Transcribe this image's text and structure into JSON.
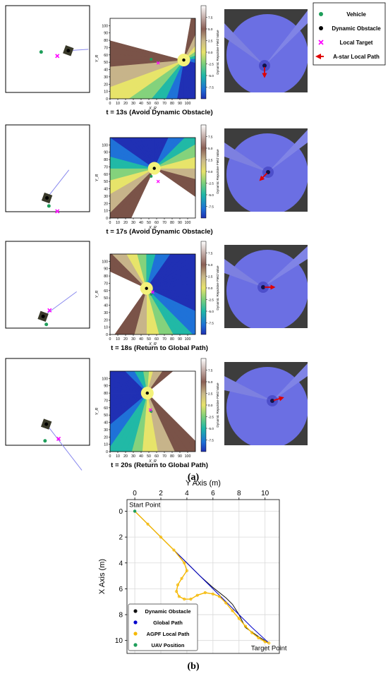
{
  "legend": {
    "items": [
      {
        "label": "Vehicle",
        "marker": "circle",
        "color": "#1e9e5a"
      },
      {
        "label": "Dynamic Obstacle",
        "marker": "circle",
        "color": "#000000"
      },
      {
        "label": "Local Target",
        "marker": "x",
        "color": "#ff00ff"
      },
      {
        "label": "A-star Local Path",
        "marker": "arrow",
        "color": "#e00000"
      }
    ]
  },
  "panels": [
    {
      "caption": "t = 13s (Avoid Dynamic Obstacle)",
      "grid": {
        "vehicle": [
          55,
          6
        ],
        "obstacle": [
          97,
          4
        ],
        "target": [
          80,
          12
        ],
        "trail_end": [
          128,
          2
        ]
      },
      "field": {
        "obstacle": [
          95,
          53
        ],
        "vehicle": [
          53,
          54
        ],
        "target": [
          62,
          49
        ],
        "pattern": "p13"
      },
      "view": {
        "obstacle": [
          57,
          80
        ],
        "arrow_dir": [
          0,
          1
        ]
      }
    },
    {
      "caption": "t = 17s (Avoid Dynamic Obstacle)",
      "grid": {
        "vehicle": [
          67,
          58
        ],
        "obstacle": [
          64,
          46
        ],
        "target": [
          80,
          66
        ],
        "trail_end": [
          98,
          4
        ]
      },
      "field": {
        "obstacle": [
          57,
          68
        ],
        "vehicle": [
          53,
          57
        ],
        "target": [
          62,
          50
        ],
        "pattern": "p17"
      },
      "view": {
        "obstacle": [
          62,
          62
        ],
        "arrow_dir": [
          -1,
          1
        ]
      }
    },
    {
      "caption": "t = 18s (Return to Global Path)",
      "grid": {
        "vehicle": [
          63,
          61
        ],
        "obstacle": [
          58,
          49
        ],
        "target": [
          68,
          40
        ],
        "trail_end": [
          110,
          12
        ]
      },
      "field": {
        "obstacle": [
          47,
          63
        ],
        "vehicle": [
          53,
          55
        ],
        "target": [
          55,
          58
        ],
        "pattern": "p18"
      },
      "view": {
        "obstacle": [
          55,
          60
        ],
        "arrow_dir": [
          1,
          0
        ]
      }
    },
    {
      "caption": "t = 20s (Return to Global Path)",
      "grid": {
        "vehicle": [
          61,
          60
        ],
        "obstacle": [
          63,
          35
        ],
        "target": [
          82,
          57
        ],
        "trail_end": [
          118,
          104
        ]
      },
      "field": {
        "obstacle": [
          48,
          80
        ],
        "vehicle": [
          53,
          55
        ],
        "target": [
          52,
          57
        ],
        "pattern": "p20"
      },
      "view": {
        "obstacle": [
          68,
          55
        ],
        "arrow_dir": [
          1,
          -0.3
        ]
      }
    }
  ],
  "field_axes": {
    "xlabel": "X_R",
    "ylabel": "Y_R",
    "xticks": [
      0,
      10,
      20,
      30,
      40,
      50,
      60,
      70,
      80,
      90,
      100
    ],
    "yticks": [
      0,
      10,
      20,
      30,
      40,
      50,
      60,
      70,
      80,
      90,
      100
    ],
    "xlim": [
      0,
      110
    ],
    "ylim": [
      0,
      110
    ],
    "colorbar": {
      "label": "Dynamic Repulsive Field Value",
      "ticks": [
        "7.5",
        "5.0",
        "2.5",
        "0.0",
        "-2.5",
        "-5.0",
        "-7.5"
      ],
      "range": [
        -10,
        10
      ]
    }
  },
  "labels": {
    "a": "(a)",
    "b": "(b)"
  },
  "chart_data": {
    "type": "line",
    "title": "",
    "xlabel": "Y Axis (m)",
    "ylabel": "X Axis (m)",
    "xlim": [
      -0.6,
      11.1
    ],
    "ylim": [
      11.0,
      -0.9
    ],
    "xticks": [
      0,
      2,
      4,
      6,
      8,
      10
    ],
    "yticks": [
      0,
      2,
      4,
      6,
      8,
      10
    ],
    "grid": true,
    "legend_position": "lower-left",
    "annotations": [
      {
        "text": "Start Point",
        "x": 0,
        "y": 0
      },
      {
        "text": "Target Point",
        "x": 10.3,
        "y": 10.2
      }
    ],
    "series": [
      {
        "name": "Dynamic Obstacle",
        "color": "#111111",
        "x": [
          0,
          1,
          2,
          3,
          4,
          5,
          6,
          7,
          7.5,
          8,
          8.5,
          9.5,
          10.3
        ],
        "y": [
          0,
          1.0,
          2.0,
          3.0,
          4.0,
          5.0,
          5.9,
          6.7,
          7.2,
          8.0,
          9.0,
          9.7,
          10.2
        ]
      },
      {
        "name": "Global Path",
        "color": "#0000cc",
        "x": [
          0,
          1,
          2,
          3,
          4,
          5,
          6,
          7,
          8,
          9,
          10.3
        ],
        "y": [
          0,
          1.0,
          2.0,
          3.0,
          4.0,
          5.0,
          6.0,
          7.0,
          8.0,
          9.0,
          10.2
        ]
      },
      {
        "name": "AGPF Local Path",
        "color": "#f5b800",
        "x": [
          0,
          1,
          2,
          3,
          3.8,
          4.0,
          3.6,
          3.3,
          3.2,
          3.4,
          3.8,
          4.3,
          4.8,
          5.4,
          6.0,
          6.5,
          7.0,
          7.5,
          8.0,
          8.5,
          9.0,
          9.5,
          10.0,
          10.3
        ],
        "y": [
          0,
          1.0,
          2.0,
          3.0,
          4.0,
          4.6,
          5.2,
          5.7,
          6.2,
          6.6,
          6.8,
          6.8,
          6.5,
          6.3,
          6.4,
          6.6,
          7.1,
          7.7,
          8.3,
          8.9,
          9.4,
          9.8,
          10.1,
          10.2
        ]
      },
      {
        "name": "UAV Position",
        "color": "#1e9e5a",
        "x": [
          0
        ],
        "y": [
          0
        ]
      }
    ]
  }
}
